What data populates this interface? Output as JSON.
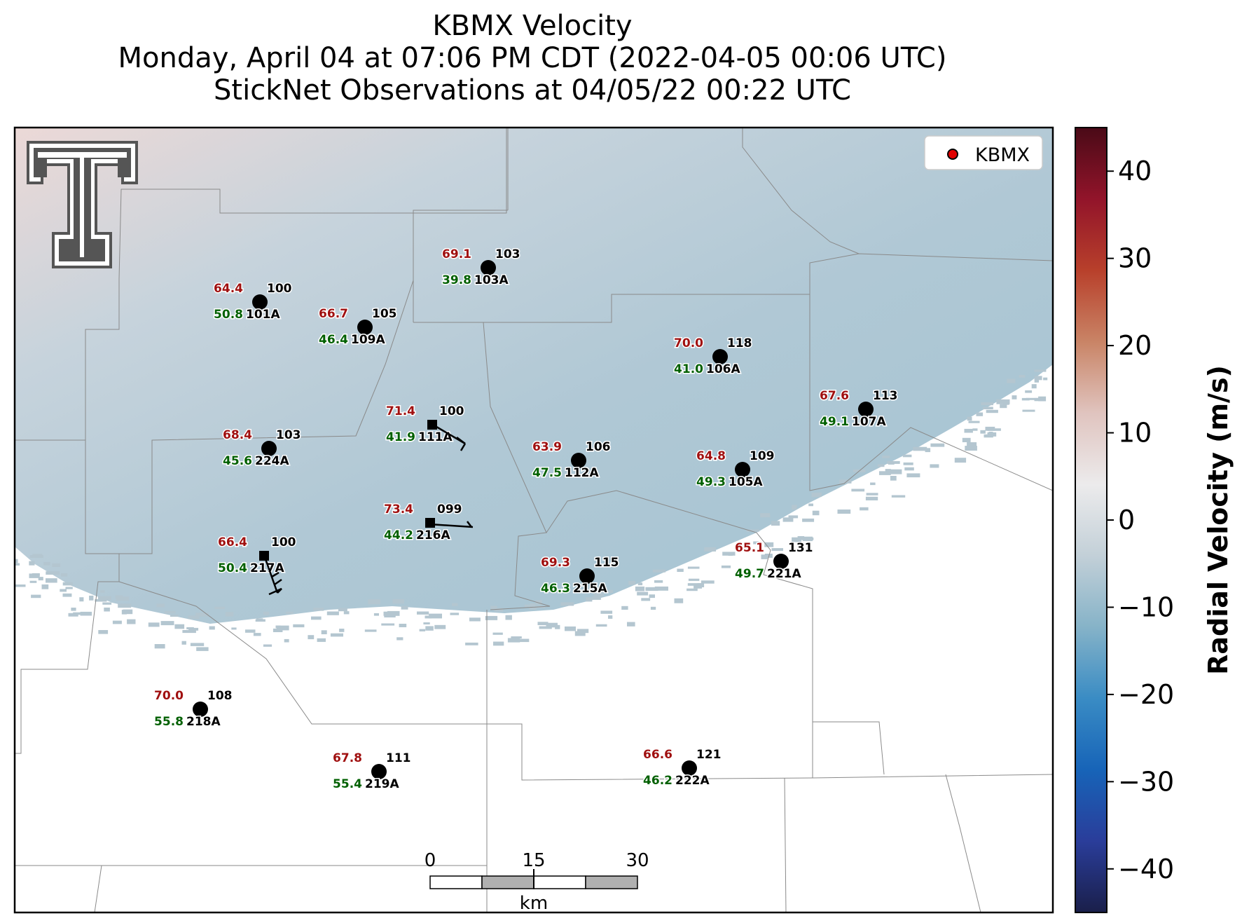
{
  "title": {
    "line1": "KBMX Velocity",
    "line2": "Monday, April 04 at 07:06 PM CDT (2022-04-05 00:06 UTC)",
    "line3": "StickNet Observations at 04/05/22 00:22 UTC"
  },
  "legend": {
    "label": "KBMX",
    "marker_color": "#e00000"
  },
  "colorbar": {
    "label": "Radial Velocity (m/s)",
    "range": [
      -45,
      45
    ],
    "ticks": [
      "40",
      "30",
      "20",
      "10",
      "0",
      "−10",
      "−20",
      "−30",
      "−40"
    ],
    "tick_values": [
      40,
      30,
      20,
      10,
      0,
      -10,
      -20,
      -30,
      -40
    ],
    "colors": [
      "#1a1f4a",
      "#2a3d9a",
      "#1764b8",
      "#3a8cc4",
      "#86b3c8",
      "#c3d0d8",
      "#ecebec",
      "#e0c4bf",
      "#c98466",
      "#b8402b",
      "#92142a",
      "#4a0a17"
    ]
  },
  "scalebar": {
    "ticks": [
      "0",
      "15",
      "30"
    ],
    "unit": "km"
  },
  "logo": {
    "name": "texas-tech-double-t-logo"
  },
  "stations": [
    {
      "id": "100",
      "temp": "64.4",
      "dew": "50.8",
      "probe": "101A",
      "marker": "circle"
    },
    {
      "id": "105",
      "temp": "66.7",
      "dew": "46.4",
      "probe": "109A",
      "marker": "circle"
    },
    {
      "id": "103",
      "temp": "69.1",
      "dew": "39.8",
      "probe": "103A",
      "marker": "circle"
    },
    {
      "id": "118",
      "temp": "70.0",
      "dew": "41.0",
      "probe": "106A",
      "marker": "circle"
    },
    {
      "id": "113",
      "temp": "67.6",
      "dew": "49.1",
      "probe": "107A",
      "marker": "circle"
    },
    {
      "id": "100",
      "temp": "71.4",
      "dew": "41.9",
      "probe": "111A",
      "marker": "square"
    },
    {
      "id": "103",
      "temp": "68.4",
      "dew": "45.6",
      "probe": "224A",
      "marker": "circle"
    },
    {
      "id": "106",
      "temp": "63.9",
      "dew": "47.5",
      "probe": "112A",
      "marker": "circle"
    },
    {
      "id": "109",
      "temp": "64.8",
      "dew": "49.3",
      "probe": "105A",
      "marker": "circle"
    },
    {
      "id": "099",
      "temp": "73.4",
      "dew": "44.2",
      "probe": "216A",
      "marker": "square"
    },
    {
      "id": "100",
      "temp": "66.4",
      "dew": "50.4",
      "probe": "217A",
      "marker": "square"
    },
    {
      "id": "115",
      "temp": "69.3",
      "dew": "46.3",
      "probe": "215A",
      "marker": "circle"
    },
    {
      "id": "131",
      "temp": "65.1",
      "dew": "49.7",
      "probe": "221A",
      "marker": "circle"
    },
    {
      "id": "108",
      "temp": "70.0",
      "dew": "55.8",
      "probe": "218A",
      "marker": "circle"
    },
    {
      "id": "111",
      "temp": "67.8",
      "dew": "55.4",
      "probe": "219A",
      "marker": "circle"
    },
    {
      "id": "121",
      "temp": "66.6",
      "dew": "46.2",
      "probe": "222A",
      "marker": "circle"
    }
  ]
}
